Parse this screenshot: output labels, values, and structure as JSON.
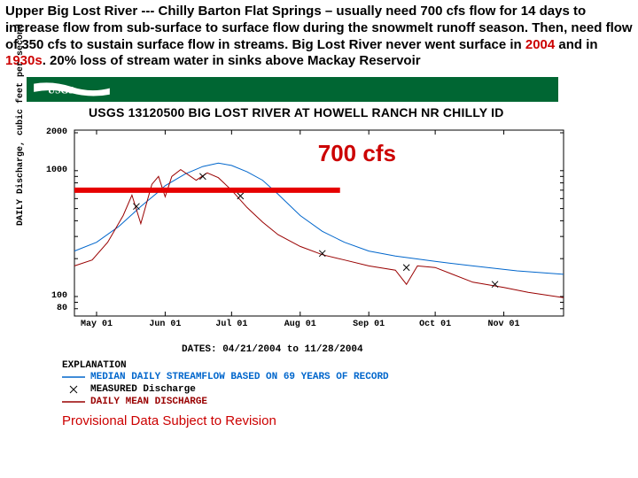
{
  "header": {
    "text_parts": [
      "Upper Big Lost River  --- Chilly Barton Flat Springs – usually need 700 cfs flow for 14 days to increase flow from sub-surface to surface flow during the snowmelt runoff season. Then, need flow of 350 cfs to sustain surface flow in streams. Big Lost River never went surface in ",
      "2004",
      " and in ",
      "1930s",
      ". 20% loss of stream water in sinks above Mackay Reservoir"
    ]
  },
  "usgs": {
    "alt": "USGS"
  },
  "chart": {
    "title": "USGS 13120500 BIG LOST RIVER AT HOWELL RANCH NR CHILLY ID",
    "yaxis_label": "DAILY Discharge, cubic feet per second",
    "yscale": "log",
    "ylim_min": 70,
    "ylim_max": 2100,
    "yticks": [
      {
        "v": 80,
        "label": "80"
      },
      {
        "v": 100,
        "label": "100"
      },
      {
        "v": 1000,
        "label": "1000"
      },
      {
        "v": 2000,
        "label": "2000"
      }
    ],
    "x_domain_days": 221,
    "xticks": [
      {
        "d": 10,
        "label": "May 01"
      },
      {
        "d": 41,
        "label": "Jun 01"
      },
      {
        "d": 71,
        "label": "Jul 01"
      },
      {
        "d": 102,
        "label": "Aug 01"
      },
      {
        "d": 133,
        "label": "Sep 01"
      },
      {
        "d": 163,
        "label": "Oct 01"
      },
      {
        "d": 194,
        "label": "Nov 01"
      }
    ],
    "dates_label": "DATES: 04/21/2004 to 11/28/2004",
    "series": {
      "median": {
        "color": "#0066cc",
        "width": 1,
        "points": [
          {
            "d": 0,
            "v": 230
          },
          {
            "d": 10,
            "v": 270
          },
          {
            "d": 20,
            "v": 360
          },
          {
            "d": 30,
            "v": 520
          },
          {
            "d": 38,
            "v": 680
          },
          {
            "d": 41,
            "v": 760
          },
          {
            "d": 50,
            "v": 940
          },
          {
            "d": 58,
            "v": 1080
          },
          {
            "d": 65,
            "v": 1150
          },
          {
            "d": 71,
            "v": 1100
          },
          {
            "d": 78,
            "v": 980
          },
          {
            "d": 85,
            "v": 840
          },
          {
            "d": 92,
            "v": 650
          },
          {
            "d": 102,
            "v": 440
          },
          {
            "d": 112,
            "v": 330
          },
          {
            "d": 122,
            "v": 270
          },
          {
            "d": 133,
            "v": 230
          },
          {
            "d": 145,
            "v": 210
          },
          {
            "d": 163,
            "v": 190
          },
          {
            "d": 180,
            "v": 175
          },
          {
            "d": 200,
            "v": 160
          },
          {
            "d": 221,
            "v": 150
          }
        ]
      },
      "mean": {
        "color": "#990000",
        "width": 1,
        "points": [
          {
            "d": 0,
            "v": 175
          },
          {
            "d": 8,
            "v": 195
          },
          {
            "d": 15,
            "v": 270
          },
          {
            "d": 22,
            "v": 440
          },
          {
            "d": 26,
            "v": 640
          },
          {
            "d": 30,
            "v": 380
          },
          {
            "d": 35,
            "v": 780
          },
          {
            "d": 38,
            "v": 900
          },
          {
            "d": 41,
            "v": 620
          },
          {
            "d": 44,
            "v": 900
          },
          {
            "d": 48,
            "v": 1020
          },
          {
            "d": 55,
            "v": 840
          },
          {
            "d": 60,
            "v": 960
          },
          {
            "d": 65,
            "v": 880
          },
          {
            "d": 71,
            "v": 700
          },
          {
            "d": 78,
            "v": 510
          },
          {
            "d": 85,
            "v": 390
          },
          {
            "d": 92,
            "v": 310
          },
          {
            "d": 102,
            "v": 250
          },
          {
            "d": 112,
            "v": 215
          },
          {
            "d": 122,
            "v": 195
          },
          {
            "d": 133,
            "v": 175
          },
          {
            "d": 145,
            "v": 162
          },
          {
            "d": 150,
            "v": 125
          },
          {
            "d": 155,
            "v": 175
          },
          {
            "d": 163,
            "v": 170
          },
          {
            "d": 180,
            "v": 130
          },
          {
            "d": 194,
            "v": 118
          },
          {
            "d": 205,
            "v": 108
          },
          {
            "d": 221,
            "v": 98
          }
        ]
      },
      "measured": {
        "color": "#000000",
        "marker": "x",
        "points": [
          {
            "d": 28,
            "v": 520
          },
          {
            "d": 58,
            "v": 900
          },
          {
            "d": 75,
            "v": 630
          },
          {
            "d": 112,
            "v": 220
          },
          {
            "d": 150,
            "v": 170
          },
          {
            "d": 190,
            "v": 125
          }
        ]
      }
    },
    "threshold_line": {
      "value": 700,
      "color": "#e60000",
      "width": 6,
      "x_start_d": 0,
      "x_end_d": 120,
      "annotation": "700 cfs",
      "annotation_pos": {
        "d": 110,
        "v": 1400
      }
    },
    "frame_color": "#000000",
    "grid_color": "#cccccc"
  },
  "explanation": {
    "title": "EXPLANATION",
    "rows": [
      {
        "kind": "line",
        "color": "#0066cc",
        "label": "MEDIAN DAILY STREAMFLOW BASED ON 69 YEARS OF RECORD"
      },
      {
        "kind": "marker",
        "color": "#000000",
        "label": "MEASURED Discharge"
      },
      {
        "kind": "line",
        "color": "#990000",
        "label": "DAILY MEAN DISCHARGE"
      }
    ]
  },
  "provisional": "Provisional Data Subject to Revision"
}
